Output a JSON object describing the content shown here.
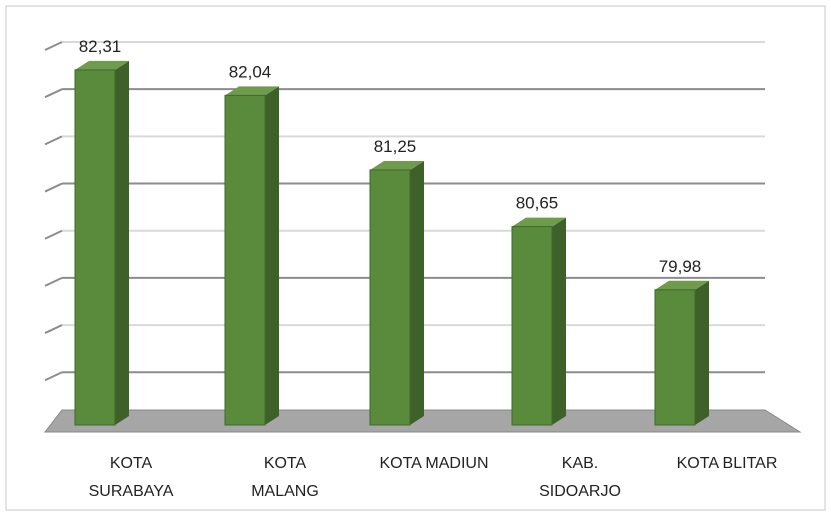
{
  "chart_data": {
    "type": "bar3d",
    "categories": [
      "KOTA SURABAYA",
      "KOTA MALANG",
      "KOTA MADIUN",
      "KAB. SIDOARJO",
      "KOTA BLITAR"
    ],
    "values": [
      82.31,
      82.04,
      81.25,
      80.65,
      79.98
    ],
    "value_labels": [
      "82,31",
      "82,04",
      "81,25",
      "80,65",
      "79,98"
    ],
    "color": "#5a8a3c",
    "ylim": [
      78.6,
      82.5
    ],
    "yticks": [
      79,
      79.5,
      80,
      80.5,
      81,
      81.5,
      82,
      82.5
    ],
    "grid": true
  }
}
